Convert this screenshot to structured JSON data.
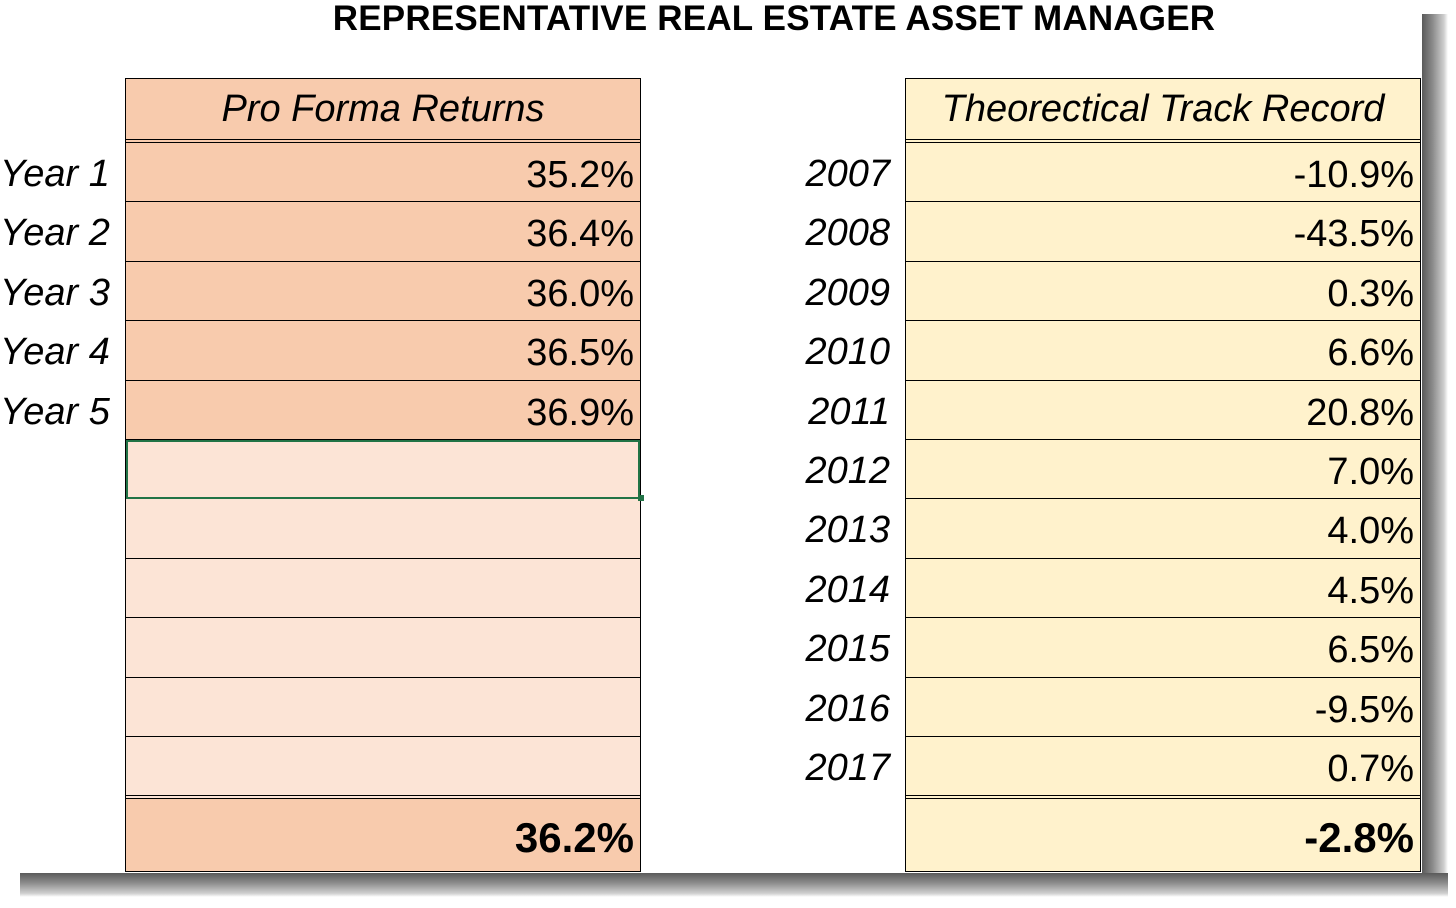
{
  "title": "REPRESENTATIVE REAL ESTATE ASSET MANAGER",
  "pro_forma": {
    "header": "Pro Forma Returns",
    "rows": [
      {
        "label": "Year 1",
        "value": "35.2%"
      },
      {
        "label": "Year 2",
        "value": "36.4%"
      },
      {
        "label": "Year 3",
        "value": "36.0%"
      },
      {
        "label": "Year 4",
        "value": "36.5%"
      },
      {
        "label": "Year 5",
        "value": "36.9%"
      },
      {
        "label": "",
        "value": ""
      },
      {
        "label": "",
        "value": ""
      },
      {
        "label": "",
        "value": ""
      },
      {
        "label": "",
        "value": ""
      },
      {
        "label": "",
        "value": ""
      },
      {
        "label": "",
        "value": ""
      }
    ],
    "total": "36.2%",
    "colors": {
      "filled": "#f8cbad",
      "empty": "#fce4d6",
      "selection": "#217346"
    }
  },
  "track_record": {
    "header": "Theorectical Track Record",
    "rows": [
      {
        "label": "2007",
        "value": "-10.9%"
      },
      {
        "label": "2008",
        "value": "-43.5%"
      },
      {
        "label": "2009",
        "value": "0.3%"
      },
      {
        "label": "2010",
        "value": "6.6%"
      },
      {
        "label": "2011",
        "value": "20.8%"
      },
      {
        "label": "2012",
        "value": "7.0%"
      },
      {
        "label": "2013",
        "value": "4.0%"
      },
      {
        "label": "2014",
        "value": "4.5%"
      },
      {
        "label": "2015",
        "value": "6.5%"
      },
      {
        "label": "2016",
        "value": "-9.5%"
      },
      {
        "label": "2017",
        "value": "0.7%"
      }
    ],
    "total": "-2.8%",
    "colors": {
      "fill": "#fff2cc"
    }
  }
}
